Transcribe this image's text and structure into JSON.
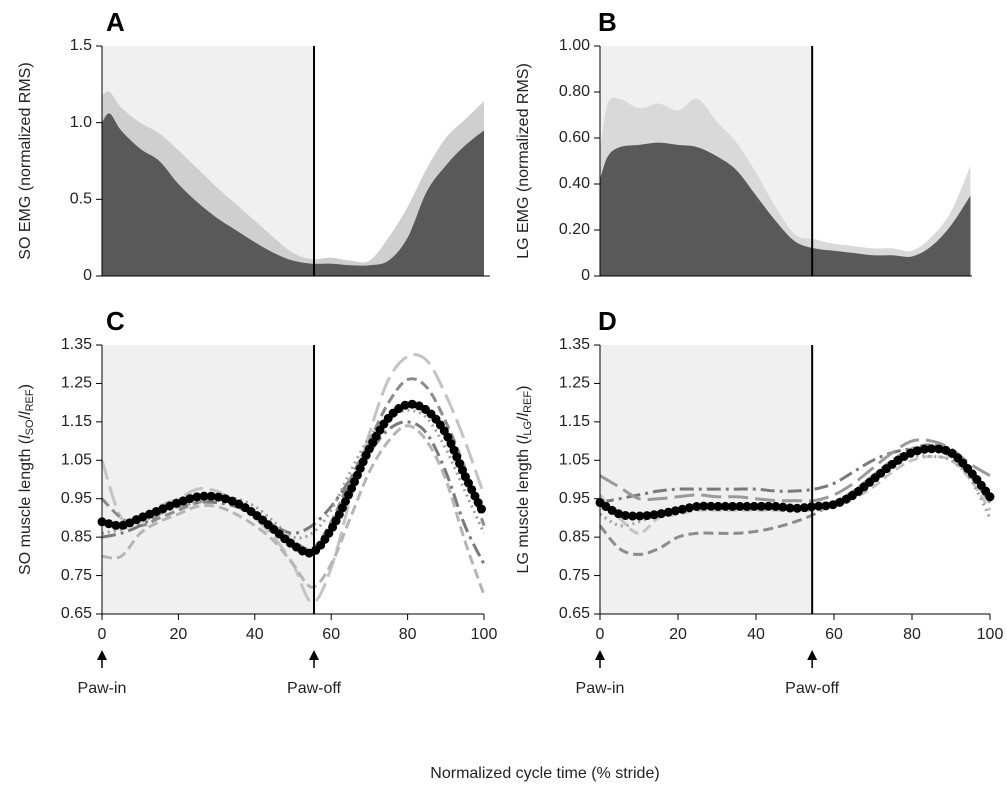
{
  "x_label": "Normalized cycle time (% stride)",
  "chart_data": [
    {
      "type": "area",
      "title": "A",
      "ylabel_parts": [
        "SO EMG (normalized RMS)"
      ],
      "x": [
        0,
        2,
        5,
        10,
        15,
        20,
        25,
        30,
        35,
        40,
        45,
        50,
        55,
        60,
        65,
        70,
        75,
        80,
        85,
        90,
        95,
        100
      ],
      "series": [
        {
          "color": "#cfcfcf",
          "values": [
            1.18,
            1.2,
            1.1,
            1.0,
            0.93,
            0.82,
            0.7,
            0.58,
            0.47,
            0.36,
            0.25,
            0.15,
            0.11,
            0.12,
            0.1,
            0.1,
            0.25,
            0.45,
            0.7,
            0.9,
            1.02,
            1.14
          ]
        },
        {
          "color": "#595959",
          "values": [
            1.0,
            1.06,
            0.95,
            0.83,
            0.75,
            0.6,
            0.48,
            0.38,
            0.3,
            0.22,
            0.15,
            0.1,
            0.08,
            0.08,
            0.07,
            0.07,
            0.1,
            0.25,
            0.55,
            0.72,
            0.85,
            0.95
          ]
        }
      ],
      "xlim": [
        0,
        100
      ],
      "ylim": [
        0,
        1.5
      ],
      "yticks": [
        0,
        0.5,
        {
          "value": 1,
          "label": "1.0"
        },
        1.5
      ],
      "vline": 55.5,
      "shade_color": "#f0f0f0"
    },
    {
      "type": "area",
      "title": "B",
      "ylabel_parts": [
        "LG EMG (normalized RMS)"
      ],
      "x": [
        0,
        2,
        5,
        10,
        15,
        20,
        25,
        30,
        35,
        40,
        45,
        50,
        55,
        60,
        65,
        70,
        75,
        80,
        85,
        90,
        95
      ],
      "series": [
        {
          "color": "#d9d9d9",
          "values": [
            0.55,
            0.75,
            0.77,
            0.73,
            0.75,
            0.72,
            0.77,
            0.67,
            0.58,
            0.45,
            0.3,
            0.18,
            0.16,
            0.14,
            0.13,
            0.12,
            0.12,
            0.11,
            0.17,
            0.28,
            0.48
          ]
        },
        {
          "color": "#595959",
          "values": [
            0.42,
            0.52,
            0.56,
            0.57,
            0.58,
            0.57,
            0.56,
            0.52,
            0.46,
            0.35,
            0.24,
            0.15,
            0.12,
            0.11,
            0.1,
            0.09,
            0.09,
            0.085,
            0.13,
            0.22,
            0.35
          ]
        }
      ],
      "xlim": [
        0,
        100
      ],
      "ylim": [
        0,
        1
      ],
      "yticks": [
        0,
        {
          "value": 0.2,
          "label": "0.20"
        },
        {
          "value": 0.4,
          "label": "0.40"
        },
        {
          "value": 0.6,
          "label": "0.60"
        },
        {
          "value": 0.8,
          "label": "0.80"
        },
        {
          "value": 1,
          "label": "1.00"
        }
      ],
      "vline": 54.4,
      "shade_color": "#f0f0f0"
    },
    {
      "type": "line",
      "title": "C",
      "ylabel_parts": [
        "SO muscle length (",
        "l",
        "SO",
        "/",
        "l",
        "REF",
        ")"
      ],
      "x": [
        0,
        5,
        10,
        15,
        20,
        25,
        30,
        35,
        40,
        45,
        50,
        55,
        60,
        65,
        70,
        75,
        80,
        85,
        90,
        95,
        100
      ],
      "series": [
        {
          "color": "#c4c4c4",
          "dash": "longdash",
          "values": [
            1.05,
            0.9,
            0.89,
            0.93,
            0.95,
            0.975,
            0.97,
            0.94,
            0.9,
            0.85,
            0.78,
            0.68,
            0.77,
            0.95,
            1.12,
            1.26,
            1.32,
            1.31,
            1.22,
            1.1,
            0.96
          ]
        },
        {
          "color": "#8c8c8c",
          "dash": "dashed",
          "values": [
            0.95,
            0.9,
            0.88,
            0.9,
            0.92,
            0.94,
            0.95,
            0.94,
            0.91,
            0.87,
            0.84,
            0.82,
            0.89,
            1.0,
            1.1,
            1.2,
            1.26,
            1.24,
            1.15,
            1.03,
            0.88
          ]
        },
        {
          "color": "#7a7a7a",
          "dash": "dashdot",
          "values": [
            0.85,
            0.86,
            0.88,
            0.91,
            0.93,
            0.94,
            0.94,
            0.93,
            0.91,
            0.88,
            0.86,
            0.88,
            0.93,
            1.0,
            1.07,
            1.13,
            1.15,
            1.12,
            1.02,
            0.88,
            0.78
          ]
        },
        {
          "color": "#b5b5b5",
          "dash": "dashed",
          "values": [
            0.8,
            0.8,
            0.86,
            0.89,
            0.91,
            0.93,
            0.93,
            0.91,
            0.88,
            0.84,
            0.78,
            0.72,
            0.78,
            0.9,
            1.02,
            1.1,
            1.14,
            1.1,
            1.0,
            0.84,
            0.7
          ]
        },
        {
          "color": "#a0a0a0",
          "dash": "dotted",
          "values": [
            0.86,
            0.87,
            0.89,
            0.91,
            0.93,
            0.94,
            0.95,
            0.95,
            0.93,
            0.89,
            0.85,
            0.86,
            0.92,
            1.02,
            1.11,
            1.16,
            1.18,
            1.16,
            1.08,
            0.97,
            0.86
          ]
        },
        {
          "color": "#000000",
          "dash": "dots",
          "values": [
            0.89,
            0.88,
            0.9,
            0.92,
            0.94,
            0.955,
            0.955,
            0.94,
            0.91,
            0.87,
            0.83,
            0.81,
            0.87,
            0.97,
            1.08,
            1.16,
            1.195,
            1.18,
            1.12,
            1.01,
            0.91
          ]
        }
      ],
      "xlim": [
        0,
        100
      ],
      "ylim": [
        0.65,
        1.35
      ],
      "xticks": [
        0,
        20,
        40,
        60,
        80,
        100
      ],
      "yticks": [
        0.65,
        0.75,
        0.85,
        0.95,
        1.05,
        1.15,
        1.25,
        1.35
      ],
      "vline": 55.5,
      "shade_color": "#f0f0f0",
      "annotations": [
        {
          "text": "Paw-in",
          "x": 0
        },
        {
          "text": "Paw-off",
          "x": 55.5
        }
      ]
    },
    {
      "type": "line",
      "title": "D",
      "ylabel_parts": [
        "LG muscle length (",
        "l",
        "LG",
        "/",
        "l",
        "REF",
        ")"
      ],
      "x": [
        0,
        5,
        10,
        15,
        20,
        25,
        30,
        35,
        40,
        45,
        50,
        55,
        60,
        65,
        70,
        75,
        80,
        85,
        90,
        95,
        100
      ],
      "series": [
        {
          "color": "#7a7a7a",
          "dash": "dashdot",
          "values": [
            0.94,
            0.95,
            0.96,
            0.97,
            0.975,
            0.975,
            0.975,
            0.975,
            0.975,
            0.97,
            0.97,
            0.975,
            0.99,
            1.02,
            1.05,
            1.07,
            1.08,
            1.08,
            1.06,
            1.01,
            0.94
          ]
        },
        {
          "color": "#8c8c8c",
          "dash": "dashed",
          "values": [
            0.88,
            0.82,
            0.805,
            0.82,
            0.85,
            0.86,
            0.86,
            0.86,
            0.865,
            0.875,
            0.89,
            0.91,
            0.94,
            0.97,
            1.01,
            1.05,
            1.08,
            1.09,
            1.07,
            1.01,
            0.94
          ]
        },
        {
          "color": "#9a9a9a",
          "dash": "longdash",
          "values": [
            1.01,
            0.98,
            0.95,
            0.95,
            0.955,
            0.96,
            0.955,
            0.955,
            0.95,
            0.945,
            0.945,
            0.945,
            0.96,
            0.99,
            1.03,
            1.07,
            1.1,
            1.1,
            1.08,
            1.04,
            1.01
          ]
        },
        {
          "color": "#c4c4c4",
          "dash": "dashed",
          "values": [
            0.96,
            0.9,
            0.86,
            0.9,
            0.91,
            0.92,
            0.92,
            0.92,
            0.92,
            0.92,
            0.92,
            0.92,
            0.93,
            0.95,
            0.98,
            1.02,
            1.05,
            1.06,
            1.05,
            1.0,
            0.92
          ]
        },
        {
          "color": "#a0a0a0",
          "dash": "dotted",
          "values": [
            0.91,
            0.88,
            0.89,
            0.91,
            0.92,
            0.925,
            0.93,
            0.93,
            0.93,
            0.93,
            0.93,
            0.93,
            0.94,
            0.97,
            1.01,
            1.04,
            1.06,
            1.06,
            1.05,
            1.0,
            0.9
          ]
        },
        {
          "color": "#000000",
          "dash": "dots",
          "values": [
            0.94,
            0.91,
            0.905,
            0.91,
            0.92,
            0.93,
            0.93,
            0.93,
            0.93,
            0.93,
            0.925,
            0.93,
            0.935,
            0.96,
            1.0,
            1.04,
            1.07,
            1.08,
            1.07,
            1.02,
            0.955
          ]
        }
      ],
      "xlim": [
        0,
        100
      ],
      "ylim": [
        0.65,
        1.35
      ],
      "xticks": [
        0,
        20,
        40,
        60,
        80,
        100
      ],
      "yticks": [
        0.65,
        0.75,
        0.85,
        0.95,
        1.05,
        1.15,
        1.25,
        1.35
      ],
      "vline": 54.4,
      "shade_color": "#f0f0f0",
      "annotations": [
        {
          "text": "Paw-in",
          "x": 0
        },
        {
          "text": "Paw-off",
          "x": 54.4
        }
      ]
    }
  ]
}
